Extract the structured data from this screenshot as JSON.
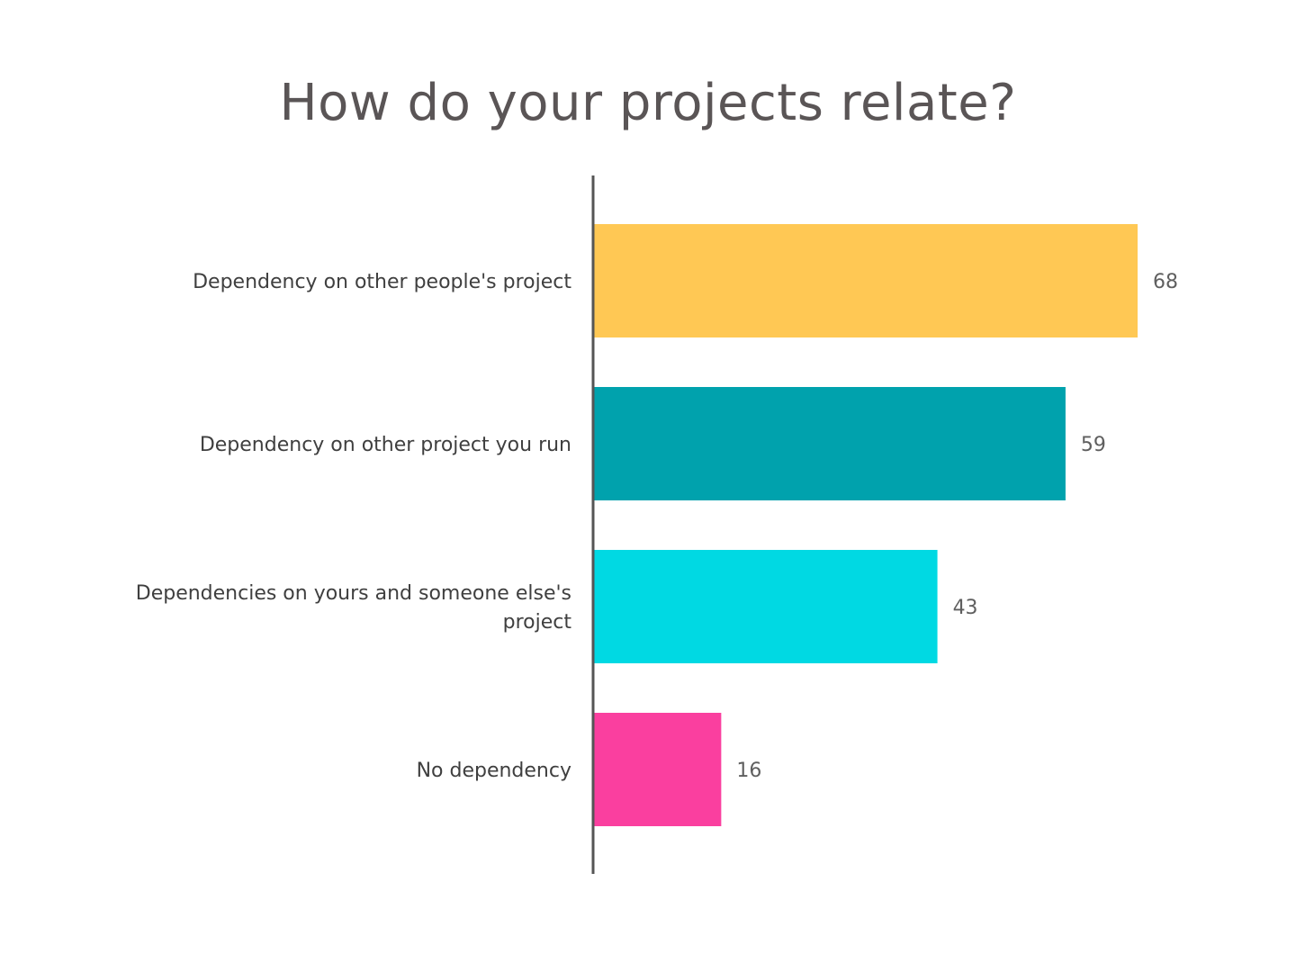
{
  "chart_data": {
    "type": "bar",
    "orientation": "horizontal",
    "title": "How do your projects relate?",
    "xlabel": "",
    "ylabel": "",
    "categories": [
      [
        "Dependency on other people's project"
      ],
      [
        "Dependency on other project you run"
      ],
      [
        "Dependencies on yours and someone else's",
        "project"
      ],
      [
        "No dependency"
      ]
    ],
    "values": [
      68,
      59,
      43,
      16
    ],
    "value_labels": [
      "68",
      "59",
      "43",
      "16"
    ],
    "colors": [
      "#ffc854",
      "#00a2ad",
      "#00d9e3",
      "#fa3f9f"
    ],
    "axis_color": "#555555",
    "grid": false,
    "legend": "none"
  }
}
